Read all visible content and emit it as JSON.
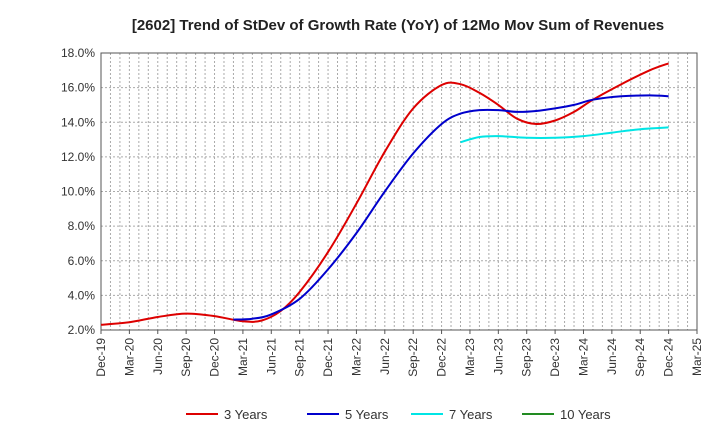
{
  "chart_data": {
    "type": "line",
    "title": "[2602]  Trend of StDev of Growth Rate (YoY) of 12Mo Mov Sum of Revenues",
    "xlabel": "",
    "ylabel": "",
    "ylim": [
      2.0,
      18.0
    ],
    "y_ticks": [
      2.0,
      4.0,
      6.0,
      8.0,
      10.0,
      12.0,
      14.0,
      16.0,
      18.0
    ],
    "y_tick_labels": [
      "2.0%",
      "4.0%",
      "6.0%",
      "8.0%",
      "10.0%",
      "12.0%",
      "14.0%",
      "16.0%",
      "18.0%"
    ],
    "x_tick_labels": [
      "Dec-19",
      "Mar-20",
      "Jun-20",
      "Sep-20",
      "Dec-20",
      "Mar-21",
      "Jun-21",
      "Sep-21",
      "Dec-21",
      "Mar-22",
      "Jun-22",
      "Sep-22",
      "Dec-22",
      "Mar-23",
      "Jun-23",
      "Sep-23",
      "Dec-23",
      "Mar-24",
      "Jun-24",
      "Sep-24",
      "Dec-24",
      "Mar-25"
    ],
    "x_range_months": [
      0,
      63
    ],
    "grid": true,
    "legend_position": "bottom",
    "series": [
      {
        "name": "3 Years",
        "color": "#dd0000",
        "points": [
          [
            0,
            2.3
          ],
          [
            3,
            2.45
          ],
          [
            6,
            2.75
          ],
          [
            9,
            2.95
          ],
          [
            12,
            2.8
          ],
          [
            15,
            2.5
          ],
          [
            17,
            2.55
          ],
          [
            19,
            3.1
          ],
          [
            21,
            4.2
          ],
          [
            24,
            6.5
          ],
          [
            27,
            9.3
          ],
          [
            30,
            12.3
          ],
          [
            33,
            14.8
          ],
          [
            36,
            16.15
          ],
          [
            38,
            16.2
          ],
          [
            40,
            15.7
          ],
          [
            42,
            15.0
          ],
          [
            44,
            14.2
          ],
          [
            46,
            13.9
          ],
          [
            48,
            14.1
          ],
          [
            50,
            14.6
          ],
          [
            52,
            15.3
          ],
          [
            55,
            16.2
          ],
          [
            58,
            17.0
          ],
          [
            60,
            17.4
          ]
        ]
      },
      {
        "name": "5 Years",
        "color": "#0000cc",
        "points": [
          [
            14,
            2.6
          ],
          [
            16,
            2.65
          ],
          [
            18,
            2.9
          ],
          [
            21,
            3.8
          ],
          [
            24,
            5.5
          ],
          [
            27,
            7.6
          ],
          [
            30,
            10.0
          ],
          [
            33,
            12.2
          ],
          [
            36,
            13.9
          ],
          [
            38,
            14.5
          ],
          [
            40,
            14.7
          ],
          [
            42,
            14.7
          ],
          [
            44,
            14.6
          ],
          [
            46,
            14.65
          ],
          [
            48,
            14.8
          ],
          [
            50,
            15.0
          ],
          [
            52,
            15.3
          ],
          [
            55,
            15.5
          ],
          [
            58,
            15.55
          ],
          [
            60,
            15.5
          ]
        ]
      },
      {
        "name": "7 Years",
        "color": "#00e5e5",
        "points": [
          [
            38,
            12.85
          ],
          [
            40,
            13.15
          ],
          [
            42,
            13.2
          ],
          [
            45,
            13.1
          ],
          [
            48,
            13.1
          ],
          [
            51,
            13.2
          ],
          [
            54,
            13.4
          ],
          [
            57,
            13.6
          ],
          [
            60,
            13.7
          ]
        ]
      },
      {
        "name": "10 Years",
        "color": "#228b22",
        "points": []
      }
    ]
  }
}
